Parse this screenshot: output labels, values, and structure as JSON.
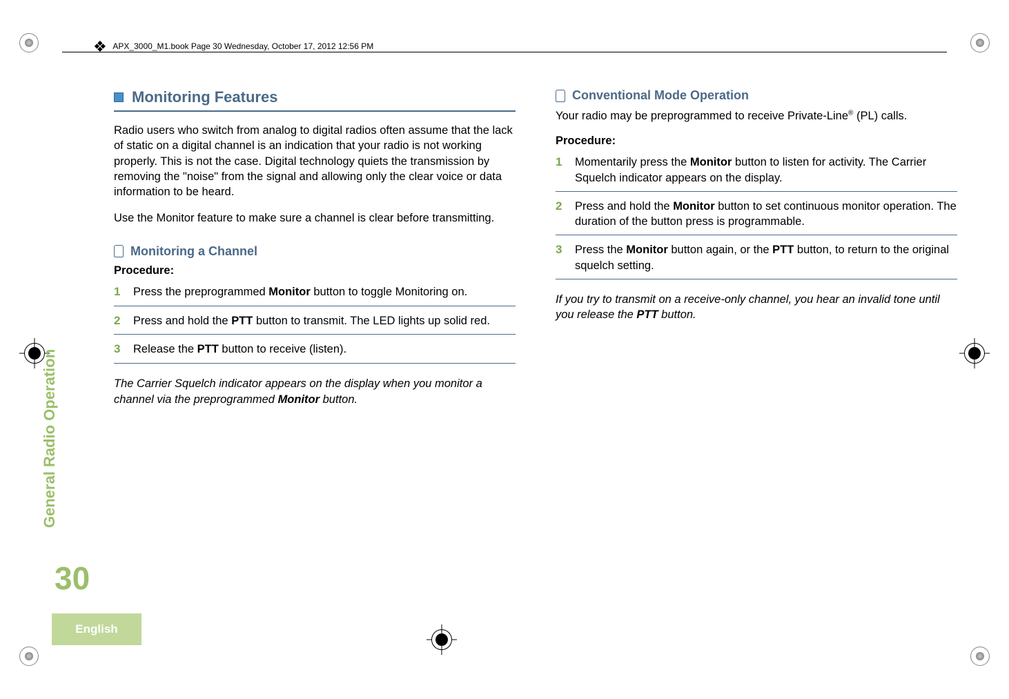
{
  "meta": {
    "book_line": "APX_3000_M1.book  Page 30  Wednesday, October 17, 2012  12:56 PM"
  },
  "sidebar": {
    "vertical_label": "General Radio Operation",
    "page_number": "30",
    "language": "English"
  },
  "colors": {
    "accent_green": "#9bbf6a",
    "lang_bg": "#c1d89a",
    "heading_blue": "#4b6a88",
    "square_blue": "#4b90c8",
    "step_green": "#7aa84a"
  },
  "left": {
    "section_title": "Monitoring Features",
    "para1": "Radio users who switch from analog to digital radios often assume that the lack of static on a digital channel is an indication that your radio is not working properly. This is not the case. Digital technology quiets the transmission by removing the \"noise\" from the signal and allowing only the clear voice or data information to be heard.",
    "para2": "Use the Monitor feature to make sure a channel is clear before transmitting.",
    "sub_title": "Monitoring a Channel",
    "procedure_label": "Procedure:",
    "steps": {
      "s1_num": "1",
      "s1_a": "Press the preprogrammed ",
      "s1_b": "Monitor",
      "s1_c": " button to toggle Monitoring on.",
      "s2_num": "2",
      "s2_a": "Press and hold the ",
      "s2_b": "PTT",
      "s2_c": " button to transmit. The LED lights up solid red.",
      "s3_num": "3",
      "s3_a": "Release the ",
      "s3_b": "PTT",
      "s3_c": " button to receive (listen)."
    },
    "note_a": "The Carrier Squelch indicator appears on the display when you monitor a channel via the preprogrammed ",
    "note_b": "Monitor",
    "note_c": " button."
  },
  "right": {
    "sub_title": "Conventional Mode Operation",
    "intro_a": "Your radio may be preprogrammed to receive Private-Line",
    "intro_sup": "®",
    "intro_b": " (PL) calls.",
    "procedure_label": "Procedure:",
    "steps": {
      "s1_num": "1",
      "s1_a": "Momentarily press the ",
      "s1_b": "Monitor",
      "s1_c": " button to listen for activity. The Carrier Squelch indicator appears on the display.",
      "s2_num": "2",
      "s2_a": "Press and hold the ",
      "s2_b": "Monitor",
      "s2_c": " button to set continuous monitor operation. The duration of the button press is programmable.",
      "s3_num": "3",
      "s3_a": "Press the ",
      "s3_b": "Monitor",
      "s3_c": " button again, or the ",
      "s3_d": "PTT",
      "s3_e": " button, to return to the original squelch setting."
    },
    "note_a": "If you try to transmit on a receive-only channel, you hear an invalid tone until you release the ",
    "note_b": "PTT",
    "note_c": " button."
  }
}
